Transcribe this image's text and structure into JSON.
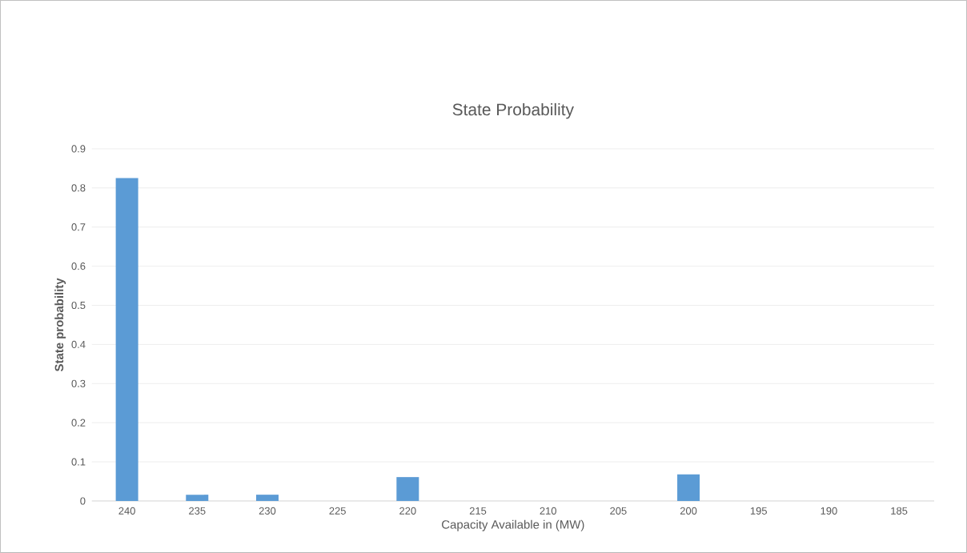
{
  "chart_data": {
    "type": "bar",
    "title": "State Probability",
    "xlabel": "Capacity Available in (MW)",
    "ylabel": "State probability",
    "categories": [
      "240",
      "235",
      "230",
      "225",
      "220",
      "215",
      "210",
      "205",
      "200",
      "195",
      "190",
      "185"
    ],
    "values": [
      0.825,
      0.016,
      0.016,
      0,
      0.061,
      0,
      0,
      0,
      0.068,
      0,
      0,
      0
    ],
    "color": "#5b9bd5",
    "ylim": [
      0,
      0.9
    ],
    "yticks": [
      0,
      0.1,
      0.2,
      0.3,
      0.4,
      0.5,
      0.6,
      0.7,
      0.8,
      0.9
    ],
    "grid": "y"
  }
}
